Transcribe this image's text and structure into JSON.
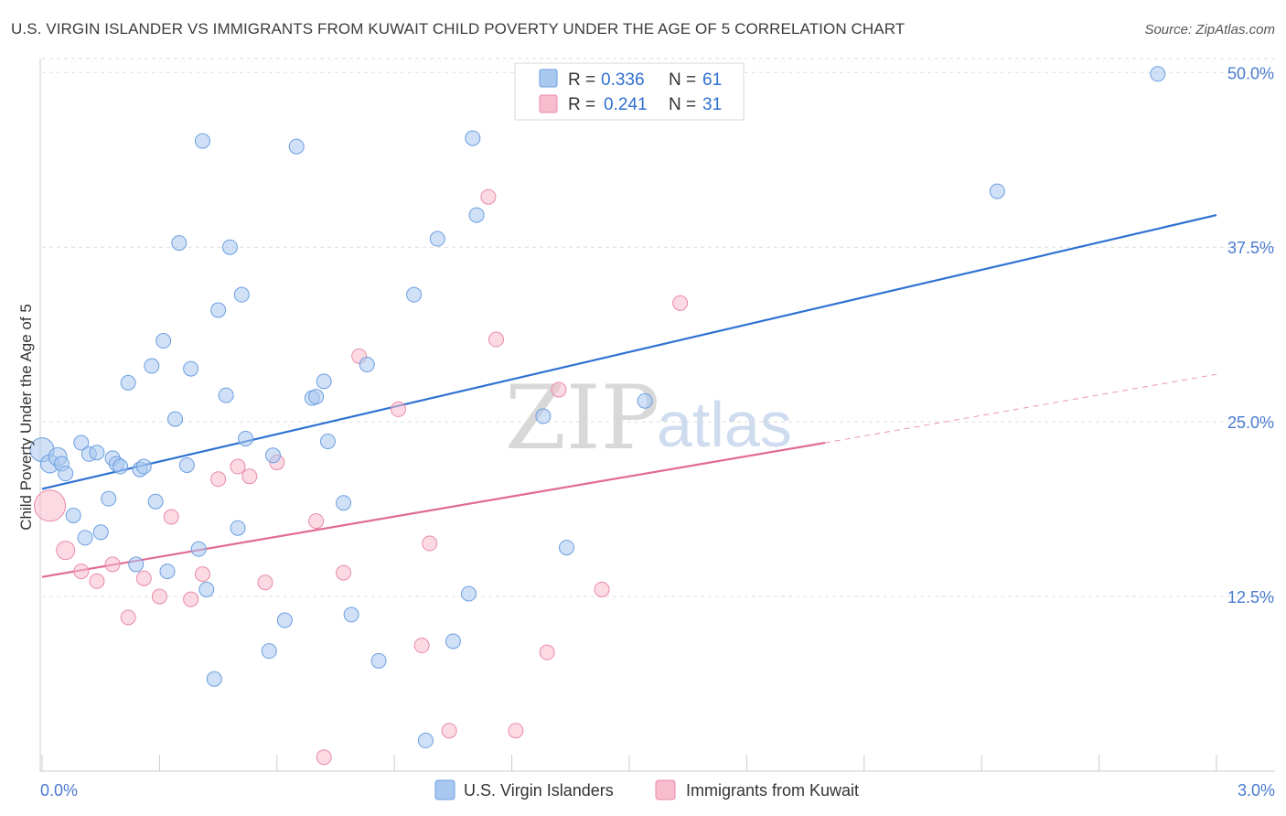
{
  "header": {
    "title": "U.S. VIRGIN ISLANDER VS IMMIGRANTS FROM KUWAIT CHILD POVERTY UNDER THE AGE OF 5 CORRELATION CHART",
    "source": "Source: ZipAtlas.com"
  },
  "watermark": {
    "zip": "ZIP",
    "atlas": "atlas"
  },
  "legend": {
    "series1": {
      "r_label": "R =",
      "r_value": "0.336",
      "n_label": "N =",
      "n_value": "61"
    },
    "series2": {
      "r_label": "R =",
      "r_value": "0.241",
      "n_label": "N =",
      "n_value": "31"
    }
  },
  "colors": {
    "blue_fill": "#a9c8f0",
    "blue_stroke": "#6c9ee0",
    "blue_line": "#2f72d2",
    "pink_fill": "#f7bccd",
    "pink_stroke": "#e98aa7",
    "pink_line": "#e06b93",
    "grid": "#dddddd",
    "tick_text": "#4a7bd0"
  },
  "chart_data": {
    "type": "scatter",
    "title": "U.S. VIRGIN ISLANDER VS IMMIGRANTS FROM KUWAIT CHILD POVERTY UNDER THE AGE OF 5 CORRELATION CHART",
    "xlabel": "",
    "ylabel": "Child Poverty Under the Age of 5",
    "xlim": [
      0,
      3.0
    ],
    "ylim": [
      0,
      51
    ],
    "x_tick_labels": [
      "0.0%",
      "3.0%"
    ],
    "y_ticks": [
      12.5,
      25.0,
      37.5,
      50.0
    ],
    "y_tick_labels": [
      "12.5%",
      "25.0%",
      "37.5%",
      "50.0%"
    ],
    "grid": "horizontal dashed",
    "legend_position": "top-center",
    "series": [
      {
        "name": "U.S. Virgin Islanders",
        "r": 0.336,
        "n": 61,
        "trend": {
          "x": [
            0.0,
            3.0
          ],
          "y": [
            20.2,
            39.8
          ]
        },
        "points": [
          {
            "x": 0.0,
            "y": 23.0,
            "s": 13
          },
          {
            "x": 0.02,
            "y": 22.0,
            "s": 10
          },
          {
            "x": 0.04,
            "y": 22.5,
            "s": 10
          },
          {
            "x": 0.05,
            "y": 22.0,
            "s": 8
          },
          {
            "x": 0.06,
            "y": 21.3,
            "s": 8
          },
          {
            "x": 0.08,
            "y": 18.3,
            "s": 8
          },
          {
            "x": 0.1,
            "y": 23.5,
            "s": 8
          },
          {
            "x": 0.11,
            "y": 16.7,
            "s": 8
          },
          {
            "x": 0.12,
            "y": 22.7,
            "s": 8
          },
          {
            "x": 0.14,
            "y": 22.8,
            "s": 8
          },
          {
            "x": 0.15,
            "y": 17.1,
            "s": 8
          },
          {
            "x": 0.17,
            "y": 19.5,
            "s": 8
          },
          {
            "x": 0.18,
            "y": 22.4,
            "s": 8
          },
          {
            "x": 0.19,
            "y": 22.0,
            "s": 8
          },
          {
            "x": 0.2,
            "y": 21.8,
            "s": 8
          },
          {
            "x": 0.22,
            "y": 27.8,
            "s": 8
          },
          {
            "x": 0.24,
            "y": 14.8,
            "s": 8
          },
          {
            "x": 0.25,
            "y": 21.6,
            "s": 8
          },
          {
            "x": 0.26,
            "y": 21.8,
            "s": 8
          },
          {
            "x": 0.28,
            "y": 29.0,
            "s": 8
          },
          {
            "x": 0.29,
            "y": 19.3,
            "s": 8
          },
          {
            "x": 0.31,
            "y": 30.8,
            "s": 8
          },
          {
            "x": 0.32,
            "y": 14.3,
            "s": 8
          },
          {
            "x": 0.34,
            "y": 25.2,
            "s": 8
          },
          {
            "x": 0.35,
            "y": 37.8,
            "s": 8
          },
          {
            "x": 0.37,
            "y": 21.9,
            "s": 8
          },
          {
            "x": 0.38,
            "y": 28.8,
            "s": 8
          },
          {
            "x": 0.4,
            "y": 15.9,
            "s": 8
          },
          {
            "x": 0.41,
            "y": 45.1,
            "s": 8
          },
          {
            "x": 0.42,
            "y": 13.0,
            "s": 8
          },
          {
            "x": 0.44,
            "y": 6.6,
            "s": 8
          },
          {
            "x": 0.45,
            "y": 33.0,
            "s": 8
          },
          {
            "x": 0.47,
            "y": 26.9,
            "s": 8
          },
          {
            "x": 0.48,
            "y": 37.5,
            "s": 8
          },
          {
            "x": 0.5,
            "y": 17.4,
            "s": 8
          },
          {
            "x": 0.51,
            "y": 34.1,
            "s": 8
          },
          {
            "x": 0.52,
            "y": 23.8,
            "s": 8
          },
          {
            "x": 0.58,
            "y": 8.6,
            "s": 8
          },
          {
            "x": 0.59,
            "y": 22.6,
            "s": 8
          },
          {
            "x": 0.62,
            "y": 10.8,
            "s": 8
          },
          {
            "x": 0.65,
            "y": 44.7,
            "s": 8
          },
          {
            "x": 0.69,
            "y": 26.7,
            "s": 8
          },
          {
            "x": 0.7,
            "y": 26.8,
            "s": 8
          },
          {
            "x": 0.72,
            "y": 27.9,
            "s": 8
          },
          {
            "x": 0.73,
            "y": 23.6,
            "s": 8
          },
          {
            "x": 0.77,
            "y": 19.2,
            "s": 8
          },
          {
            "x": 0.79,
            "y": 11.2,
            "s": 8
          },
          {
            "x": 0.83,
            "y": 29.1,
            "s": 8
          },
          {
            "x": 0.86,
            "y": 7.9,
            "s": 8
          },
          {
            "x": 0.95,
            "y": 34.1,
            "s": 8
          },
          {
            "x": 0.98,
            "y": 2.2,
            "s": 8
          },
          {
            "x": 1.01,
            "y": 38.1,
            "s": 8
          },
          {
            "x": 1.05,
            "y": 9.3,
            "s": 8
          },
          {
            "x": 1.09,
            "y": 12.7,
            "s": 8
          },
          {
            "x": 1.1,
            "y": 45.3,
            "s": 8
          },
          {
            "x": 1.11,
            "y": 39.8,
            "s": 8
          },
          {
            "x": 1.28,
            "y": 25.4,
            "s": 8
          },
          {
            "x": 1.34,
            "y": 16.0,
            "s": 8
          },
          {
            "x": 1.54,
            "y": 26.5,
            "s": 8
          },
          {
            "x": 2.44,
            "y": 41.5,
            "s": 8
          },
          {
            "x": 2.85,
            "y": 49.9,
            "s": 8
          }
        ]
      },
      {
        "name": "Immigrants from Kuwait",
        "r": 0.241,
        "n": 31,
        "trend": {
          "x": [
            0.0,
            2.0
          ],
          "y": [
            13.9,
            23.5
          ]
        },
        "trend_dashed": {
          "x": [
            2.0,
            3.0
          ],
          "y": [
            23.5,
            28.4
          ]
        },
        "points": [
          {
            "x": 0.02,
            "y": 19.0,
            "s": 17
          },
          {
            "x": 0.06,
            "y": 15.8,
            "s": 10
          },
          {
            "x": 0.1,
            "y": 14.3,
            "s": 8
          },
          {
            "x": 0.14,
            "y": 13.6,
            "s": 8
          },
          {
            "x": 0.18,
            "y": 14.8,
            "s": 8
          },
          {
            "x": 0.22,
            "y": 11.0,
            "s": 8
          },
          {
            "x": 0.26,
            "y": 13.8,
            "s": 8
          },
          {
            "x": 0.3,
            "y": 12.5,
            "s": 8
          },
          {
            "x": 0.33,
            "y": 18.2,
            "s": 8
          },
          {
            "x": 0.38,
            "y": 12.3,
            "s": 8
          },
          {
            "x": 0.41,
            "y": 14.1,
            "s": 8
          },
          {
            "x": 0.45,
            "y": 20.9,
            "s": 8
          },
          {
            "x": 0.5,
            "y": 21.8,
            "s": 8
          },
          {
            "x": 0.53,
            "y": 21.1,
            "s": 8
          },
          {
            "x": 0.57,
            "y": 13.5,
            "s": 8
          },
          {
            "x": 0.6,
            "y": 22.1,
            "s": 8
          },
          {
            "x": 0.7,
            "y": 17.9,
            "s": 8
          },
          {
            "x": 0.72,
            "y": 1.0,
            "s": 8
          },
          {
            "x": 0.77,
            "y": 14.2,
            "s": 8
          },
          {
            "x": 0.81,
            "y": 29.7,
            "s": 8
          },
          {
            "x": 0.91,
            "y": 25.9,
            "s": 8
          },
          {
            "x": 0.97,
            "y": 9.0,
            "s": 8
          },
          {
            "x": 0.99,
            "y": 16.3,
            "s": 8
          },
          {
            "x": 1.04,
            "y": 2.9,
            "s": 8
          },
          {
            "x": 1.14,
            "y": 41.1,
            "s": 8
          },
          {
            "x": 1.16,
            "y": 30.9,
            "s": 8
          },
          {
            "x": 1.21,
            "y": 2.9,
            "s": 8
          },
          {
            "x": 1.29,
            "y": 8.5,
            "s": 8
          },
          {
            "x": 1.32,
            "y": 27.3,
            "s": 8
          },
          {
            "x": 1.43,
            "y": 13.0,
            "s": 8
          },
          {
            "x": 1.63,
            "y": 33.5,
            "s": 8
          }
        ]
      }
    ]
  }
}
